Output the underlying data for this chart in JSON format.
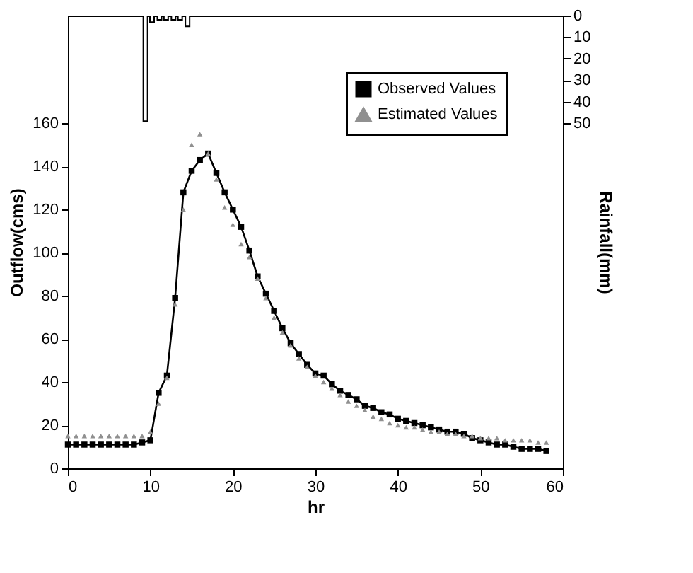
{
  "chart_data": {
    "type": "line",
    "xlabel": "hr",
    "ylabel": "Outflow(cms)",
    "y2label": "Rainfall(mm)",
    "xlim": [
      0,
      60
    ],
    "xticks": [
      0,
      10,
      20,
      30,
      40,
      50,
      60
    ],
    "ylim": [
      0,
      210
    ],
    "yticks": [
      0,
      20,
      40,
      60,
      80,
      100,
      120,
      140,
      160
    ],
    "y2lim": [
      210,
      0
    ],
    "y2ticks": [
      0,
      10,
      20,
      30,
      40,
      50
    ],
    "legend": "top right",
    "grid": false,
    "series": [
      {
        "name": "Observed Values",
        "marker": "square",
        "line_style": "solid",
        "color": "#000000",
        "x": [
          0,
          1,
          2,
          3,
          4,
          5,
          6,
          7,
          8,
          9,
          10,
          11,
          12,
          13,
          14,
          15,
          16,
          17,
          18,
          19,
          20,
          21,
          22,
          23,
          24,
          25,
          26,
          27,
          28,
          29,
          30,
          31,
          32,
          33,
          34,
          35,
          36,
          37,
          38,
          39,
          40,
          41,
          42,
          43,
          44,
          45,
          46,
          47,
          48,
          49,
          50,
          51,
          52,
          53,
          54,
          55,
          56,
          57,
          58
        ],
        "values": [
          11,
          11,
          11,
          11,
          11,
          11,
          11,
          11,
          11,
          12,
          13,
          35,
          43,
          79,
          128,
          138,
          143,
          146,
          137,
          128,
          120,
          112,
          101,
          89,
          81,
          73,
          65,
          58,
          53,
          48,
          44,
          43,
          39,
          36,
          34,
          32,
          29,
          28,
          26,
          25,
          23,
          22,
          21,
          20,
          19,
          18,
          17,
          17,
          16,
          14,
          13,
          12,
          11,
          11,
          10,
          9,
          9,
          9,
          8
        ]
      },
      {
        "name": "Estimated Values",
        "type": "scatter",
        "marker": "triangle",
        "color": "#909090",
        "x": [
          0,
          1,
          2,
          3,
          4,
          5,
          6,
          7,
          8,
          9,
          10,
          11,
          12,
          13,
          14,
          15,
          16,
          17,
          18,
          19,
          20,
          21,
          22,
          23,
          24,
          25,
          26,
          27,
          28,
          29,
          30,
          31,
          32,
          33,
          34,
          35,
          36,
          37,
          38,
          39,
          40,
          41,
          42,
          43,
          44,
          45,
          46,
          47,
          48,
          49,
          50,
          51,
          52,
          53,
          54,
          55,
          56,
          57,
          58
        ],
        "values": [
          15,
          15,
          15,
          15,
          15,
          15,
          15,
          15,
          15,
          15,
          17,
          30,
          42,
          76,
          120,
          150,
          155,
          146,
          134,
          121,
          113,
          104,
          98,
          88,
          79,
          70,
          63,
          57,
          51,
          47,
          43,
          40,
          37,
          34,
          31,
          29,
          27,
          24,
          23,
          21,
          20,
          19,
          19,
          18,
          17,
          17,
          16,
          16,
          15,
          15,
          14,
          14,
          14,
          13,
          13,
          13,
          13,
          12,
          12
        ]
      },
      {
        "type": "bar",
        "axis": "y2",
        "color": "#000000",
        "x": [
          9.4,
          10.2,
          11.1,
          11.9,
          12.8,
          13.6,
          14.5
        ],
        "values": [
          49,
          3,
          2,
          2,
          2,
          2,
          5
        ]
      }
    ]
  }
}
